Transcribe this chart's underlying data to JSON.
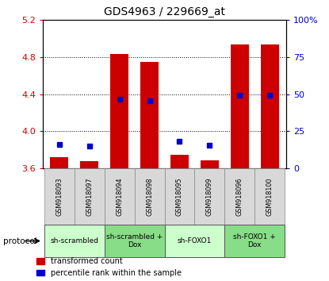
{
  "title": "GDS4963 / 229669_at",
  "samples": [
    "GSM918093",
    "GSM918097",
    "GSM918094",
    "GSM918098",
    "GSM918095",
    "GSM918099",
    "GSM918096",
    "GSM918100"
  ],
  "red_bar_top": [
    3.72,
    3.68,
    4.83,
    4.75,
    3.75,
    3.69,
    4.93,
    4.93
  ],
  "blue_marker": [
    3.855,
    3.845,
    4.345,
    4.325,
    3.895,
    3.848,
    4.385,
    4.385
  ],
  "bar_base": 3.6,
  "ylim": [
    3.6,
    5.2
  ],
  "y2lim": [
    0,
    100
  ],
  "yticks": [
    3.6,
    4.0,
    4.4,
    4.8,
    5.2
  ],
  "y2ticks": [
    0,
    25,
    50,
    75,
    100
  ],
  "bar_color": "#cc0000",
  "marker_color": "#0000cc",
  "protocols": [
    {
      "label": "sh-scrambled",
      "cols": [
        0,
        1
      ],
      "color": "#ccffcc"
    },
    {
      "label": "sh-scrambled +\nDox",
      "cols": [
        2,
        3
      ],
      "color": "#88dd88"
    },
    {
      "label": "sh-FOXO1",
      "cols": [
        4,
        5
      ],
      "color": "#ccffcc"
    },
    {
      "label": "sh-FOXO1 +\nDox",
      "cols": [
        6,
        7
      ],
      "color": "#88dd88"
    }
  ],
  "legend_red": "transformed count",
  "legend_blue": "percentile rank within the sample",
  "bar_width": 0.6,
  "title_fontsize": 10
}
